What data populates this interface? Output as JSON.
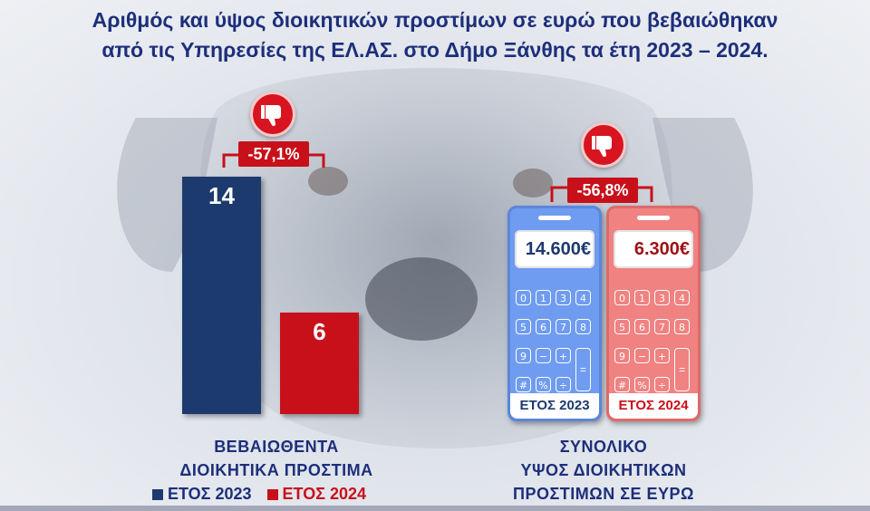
{
  "title": {
    "line1": "Αριθμός και ύψος διοικητικών προστίμων σε ευρώ που βεβαιώθηκαν",
    "line2": "από τις Υπηρεσίες της ΕΛ.ΑΣ. στο Δήμο Ξάνθης τα έτη 2023 – 2024."
  },
  "colors": {
    "year_2023": "#1d3a6e",
    "year_2024": "#c8101a",
    "title": "#1d2f7a"
  },
  "chart_data": [
    {
      "type": "bar",
      "categories": [
        "ΕΤΟΣ 2023",
        "ΕΤΟΣ 2024"
      ],
      "values": [
        14,
        6
      ],
      "value_labels": [
        "14",
        "6"
      ],
      "change_label": "-57,1%",
      "change_icon": "thumbs-down-icon",
      "xlabel_line1": "ΒΕΒΑΙΩΘΕΝΤΑ",
      "xlabel_line2": "ΔΙΟΙΚΗΤΙΚΑ ΠΡΟΣΤΙΜΑ",
      "legend": [
        "ΕΤΟΣ 2023",
        "ΕΤΟΣ 2024"
      ],
      "legend_position": "bottom"
    },
    {
      "type": "table",
      "categories": [
        "ΕΤΟΣ 2023",
        "ΕΤΟΣ 2024"
      ],
      "values": [
        14600,
        6300
      ],
      "value_labels": [
        "14.600€",
        "6.300€"
      ],
      "change_label": "-56,8%",
      "change_icon": "thumbs-down-icon",
      "representation": "calculator-icon",
      "caption_line1": "ΣΥΝΟΛΙΚΟ",
      "caption_line2": "ΥΨΟΣ ΔΙΟΙΚΗΤΙΚΩΝ",
      "caption_line3": "ΠΡΟΣΤΙΜΩΝ ΣΕ ΕΥΡΩ"
    }
  ],
  "calculator_keys": [
    "0",
    "1",
    "3",
    "4",
    "5",
    "6",
    "7",
    "8",
    "9",
    "−",
    "+",
    "#",
    "%",
    "÷",
    "="
  ]
}
